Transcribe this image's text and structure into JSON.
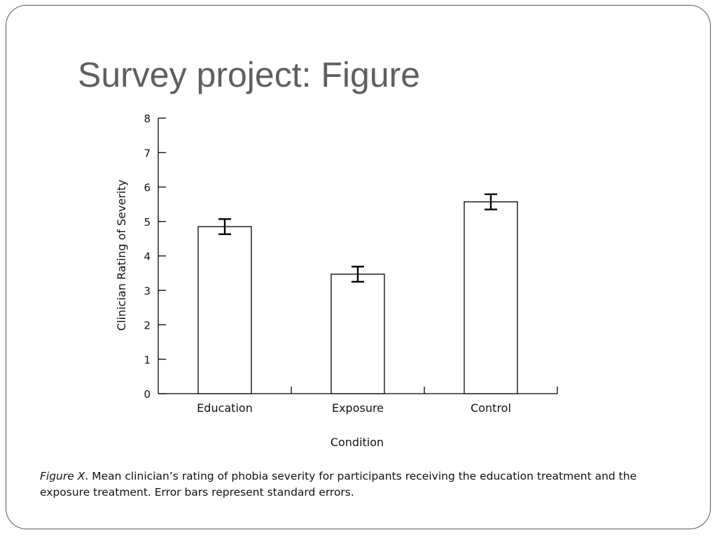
{
  "slide": {
    "title": "Survey project: Figure"
  },
  "caption": {
    "lead": "Figure X",
    "text": ". Mean clinician’s rating of phobia severity for participants receiving the education treatment and the exposure treatment. Error bars represent standard errors."
  },
  "chart_data": {
    "type": "bar",
    "title": "",
    "xlabel": "Condition",
    "ylabel": "Clinician Rating of Severity",
    "categories": [
      "Education",
      "Exposure",
      "Control"
    ],
    "values": [
      4.85,
      3.47,
      5.57
    ],
    "errors": [
      0.22,
      0.22,
      0.22
    ],
    "ylim": [
      0,
      8
    ],
    "yticks": [
      0,
      1,
      2,
      3,
      4,
      5,
      6,
      7,
      8
    ],
    "grid": false,
    "legend": "none",
    "colors": {
      "bar_fill": "#ffffff",
      "bar_stroke": "#000000",
      "axis": "#000000"
    }
  }
}
